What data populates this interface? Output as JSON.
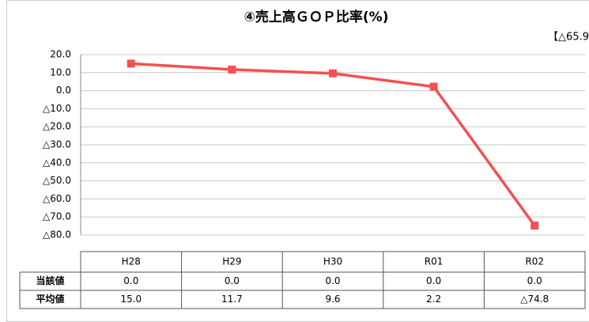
{
  "chart_data": {
    "type": "line",
    "title": "④売上高ＧＯＰ比率(%)",
    "annotation": "【△65.9",
    "categories": [
      "H28",
      "H29",
      "H30",
      "R01",
      "R02"
    ],
    "series": [
      {
        "name": "当該値",
        "values": [
          0,
          0,
          0,
          0,
          0
        ],
        "value_labels": [
          "0.0",
          "0.0",
          "0.0",
          "0.0",
          "0.0"
        ]
      },
      {
        "name": "平均値",
        "color": "#f4504f",
        "values": [
          15.0,
          11.7,
          9.6,
          2.2,
          -74.8
        ],
        "value_labels": [
          "15.0",
          "11.7",
          "9.6",
          "2.2",
          "△74.8"
        ]
      }
    ],
    "ylim": [
      -80,
      20
    ],
    "yticks": [
      {
        "value": 20,
        "label": "20.0"
      },
      {
        "value": 10,
        "label": "10.0"
      },
      {
        "value": 0,
        "label": "0.0"
      },
      {
        "value": -10,
        "label": "△10.0"
      },
      {
        "value": -20,
        "label": "△20.0"
      },
      {
        "value": -30,
        "label": "△30.0"
      },
      {
        "value": -40,
        "label": "△40.0"
      },
      {
        "value": -50,
        "label": "△50.0"
      },
      {
        "value": -60,
        "label": "△60.0"
      },
      {
        "value": -70,
        "label": "△70.0"
      },
      {
        "value": -80,
        "label": "△80.0"
      }
    ],
    "grid": true
  }
}
